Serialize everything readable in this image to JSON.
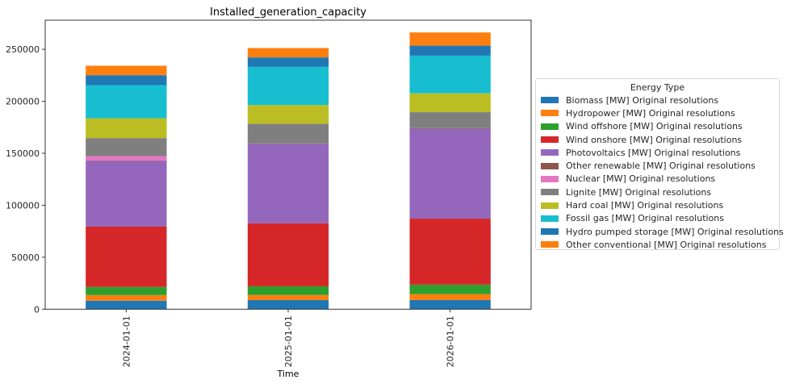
{
  "chart_data": {
    "type": "bar",
    "stacked": true,
    "title": "Installed_generation_capacity",
    "xlabel": "Time",
    "ylabel": "",
    "ylim": [
      0,
      278000
    ],
    "yticks": [
      0,
      50000,
      100000,
      150000,
      200000,
      250000
    ],
    "ytick_labels": [
      "0",
      "50000",
      "100000",
      "150000",
      "200000",
      "250000"
    ],
    "categories": [
      "2024-01-01",
      "2025-01-01",
      "2026-01-01"
    ],
    "legend_title": "Energy Type",
    "legend_position": "center-right (outside)",
    "grid": false,
    "series": [
      {
        "name": "Biomass [MW] Original resolutions",
        "color": "#1f77b4",
        "values": [
          8200,
          8800,
          8800
        ]
      },
      {
        "name": "Hydropower [MW] Original resolutions",
        "color": "#ff7f0e",
        "values": [
          5400,
          4900,
          5700
        ]
      },
      {
        "name": "Wind offshore [MW] Original resolutions",
        "color": "#2ca02c",
        "values": [
          7800,
          8300,
          9100
        ]
      },
      {
        "name": "Wind onshore [MW] Original resolutions",
        "color": "#d62728",
        "values": [
          58000,
          60700,
          63500
        ]
      },
      {
        "name": "Photovoltaics [MW] Original resolutions",
        "color": "#9467bd",
        "values": [
          63200,
          76400,
          86500
        ]
      },
      {
        "name": "Other renewable [MW] Original resolutions",
        "color": "#8c564b",
        "values": [
          300,
          300,
          600
        ]
      },
      {
        "name": "Nuclear [MW] Original resolutions",
        "color": "#e377c2",
        "values": [
          4400,
          0,
          0
        ]
      },
      {
        "name": "Lignite [MW] Original resolutions",
        "color": "#7f7f7f",
        "values": [
          17300,
          19000,
          15300
        ]
      },
      {
        "name": "Hard coal [MW] Original resolutions",
        "color": "#bcbd22",
        "values": [
          19000,
          17900,
          18100
        ]
      },
      {
        "name": "Fossil gas [MW] Original resolutions",
        "color": "#17becf",
        "values": [
          31900,
          36800,
          36300
        ]
      },
      {
        "name": "Hydro pumped storage [MW] Original resolutions",
        "color": "#1f77b4",
        "values": [
          9600,
          9100,
          9600
        ]
      },
      {
        "name": "Other conventional [MW] Original resolutions",
        "color": "#ff7f0e",
        "values": [
          9100,
          9000,
          12700
        ]
      }
    ]
  }
}
